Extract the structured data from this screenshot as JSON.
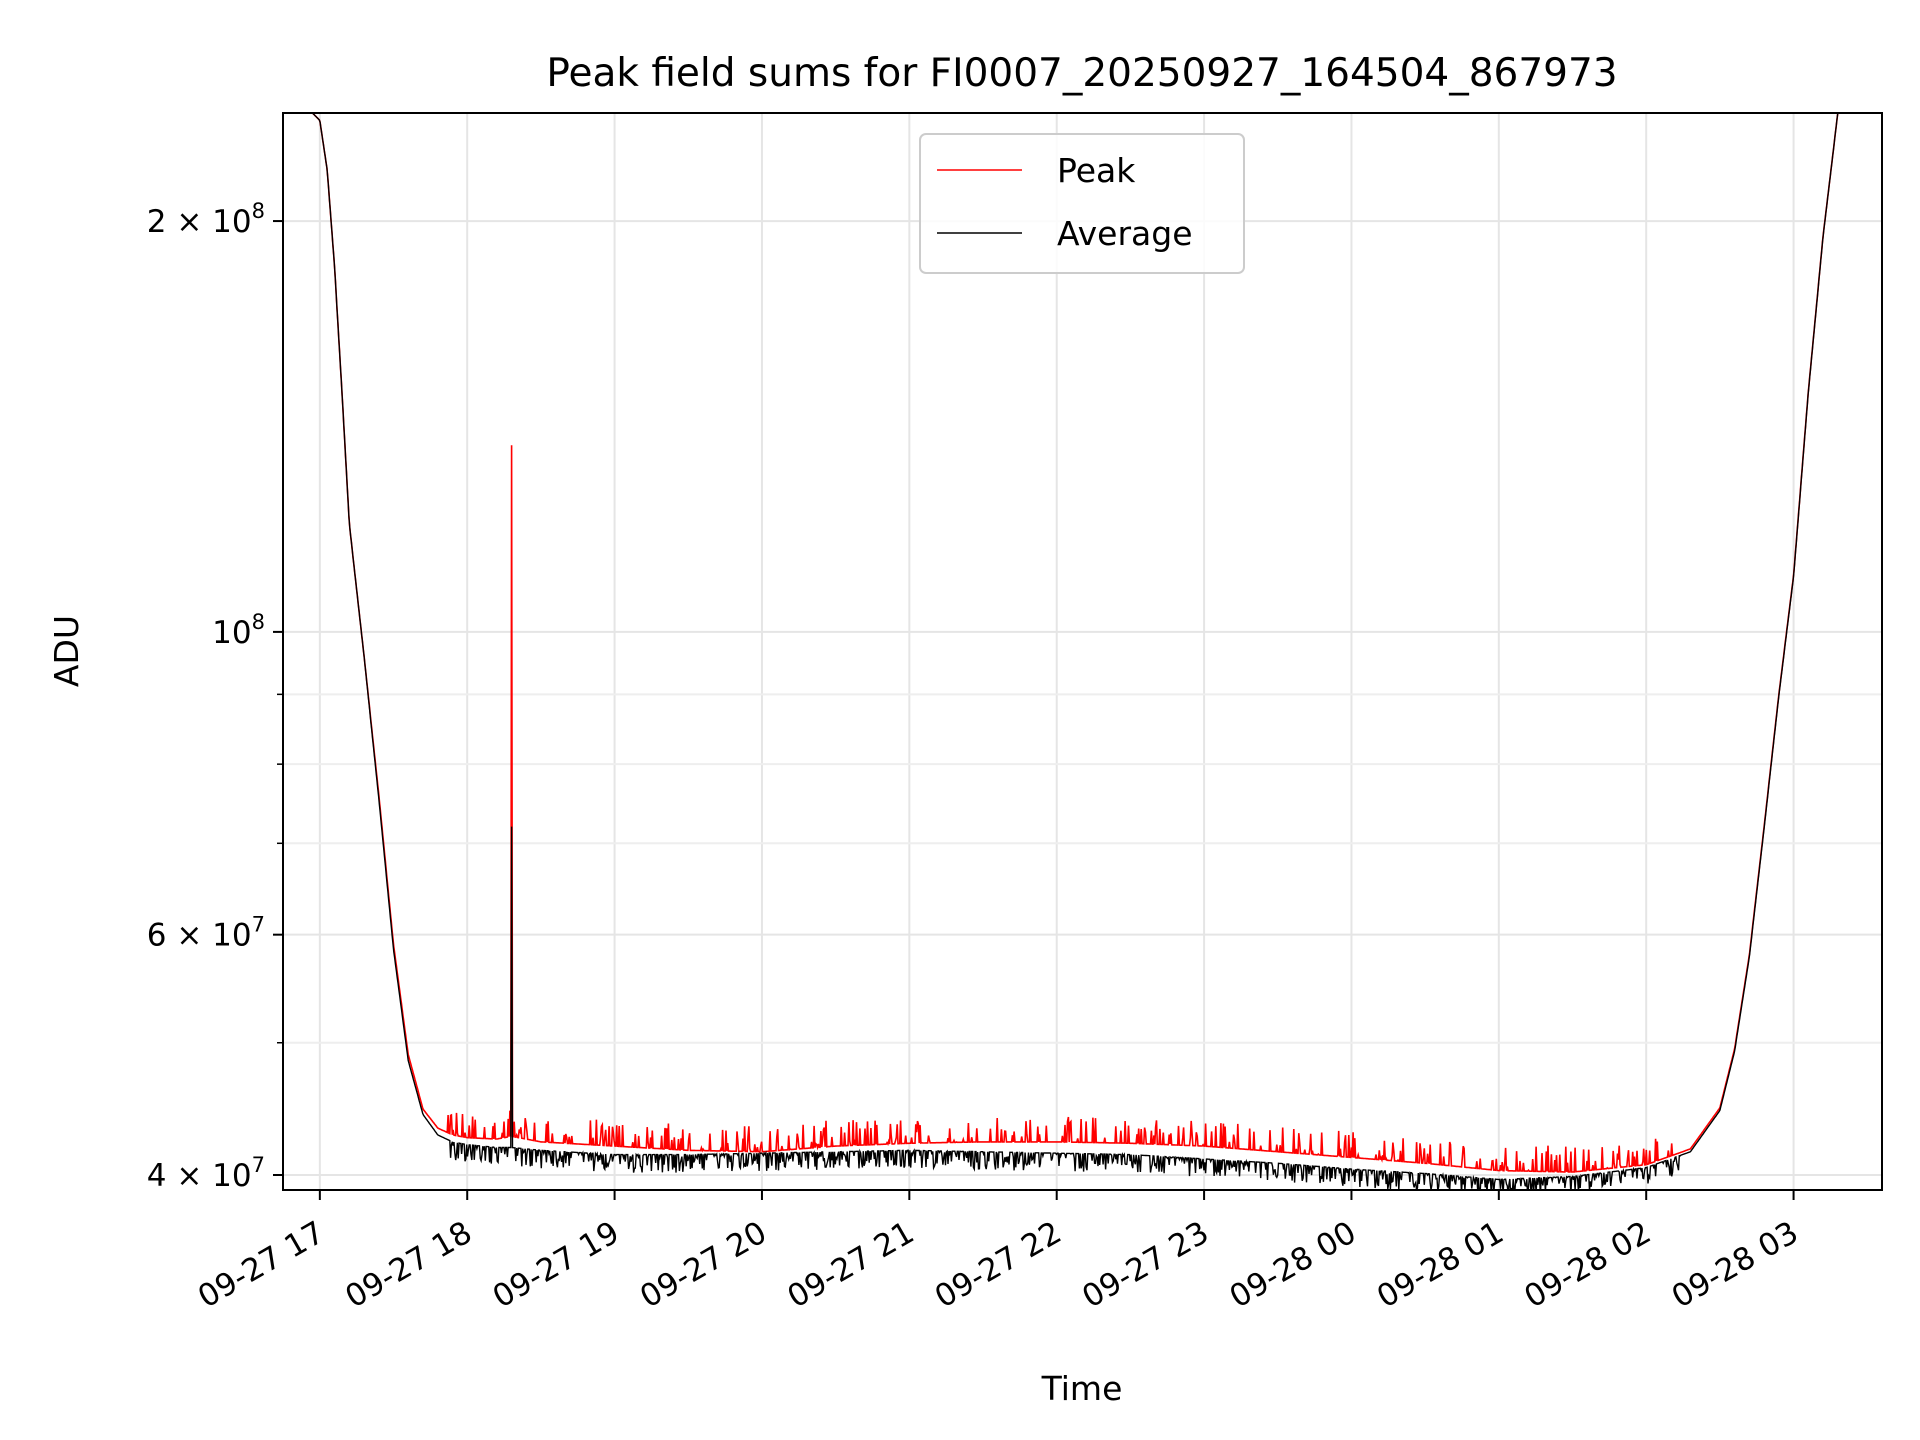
{
  "chart_data": {
    "type": "line",
    "title": "Peak field sums for FI0007_20250927_164504_867973",
    "xlabel": "Time",
    "ylabel": "ADU",
    "yscale": "log",
    "grid": true,
    "legend_position": "top-center",
    "xlim_hours_since_0927_17": [
      -0.25,
      10.6
    ],
    "ylim": [
      39000000,
      240000000
    ],
    "x_ticks": [
      {
        "hour": 0,
        "label": "09-27 17"
      },
      {
        "hour": 1,
        "label": "09-27 18"
      },
      {
        "hour": 2,
        "label": "09-27 19"
      },
      {
        "hour": 3,
        "label": "09-27 20"
      },
      {
        "hour": 4,
        "label": "09-27 21"
      },
      {
        "hour": 5,
        "label": "09-27 22"
      },
      {
        "hour": 6,
        "label": "09-27 23"
      },
      {
        "hour": 7,
        "label": "09-28 00"
      },
      {
        "hour": 8,
        "label": "09-28 01"
      },
      {
        "hour": 9,
        "label": "09-28 02"
      },
      {
        "hour": 10,
        "label": "09-28 03"
      }
    ],
    "y_major_ticks": [
      {
        "value": 40000000,
        "mantissa": "4",
        "exponent": "7"
      },
      {
        "value": 60000000,
        "mantissa": "6",
        "exponent": "7"
      },
      {
        "value": 100000000,
        "mantissa": "",
        "exponent": "8"
      },
      {
        "value": 200000000,
        "mantissa": "2",
        "exponent": "8"
      }
    ],
    "y_minor_ticks": [
      50000000,
      70000000,
      80000000,
      90000000
    ],
    "series": [
      {
        "name": "Peak",
        "color": "#ff0000",
        "hours": [
          -0.05,
          0.0,
          0.05,
          0.1,
          0.15,
          0.2,
          0.3,
          0.4,
          0.5,
          0.6,
          0.7,
          0.8,
          0.9,
          1.0,
          1.2,
          1.3,
          1.5,
          2.0,
          2.5,
          3.0,
          3.5,
          4.0,
          4.5,
          5.0,
          5.5,
          6.0,
          6.5,
          7.0,
          7.5,
          8.0,
          8.5,
          9.0,
          9.3,
          9.5,
          9.6,
          9.7,
          9.8,
          9.9,
          10.0,
          10.1,
          10.2,
          10.3
        ],
        "values": [
          240000000,
          237000000,
          218000000,
          185000000,
          150000000,
          120000000,
          96000000,
          76000000,
          59000000,
          49000000,
          44700000,
          43300000,
          42800000,
          42600000,
          42500000,
          42700000,
          42300000,
          42000000,
          41700000,
          41600000,
          42000000,
          42200000,
          42300000,
          42300000,
          42200000,
          42000000,
          41600000,
          41200000,
          40800000,
          40300000,
          40200000,
          40700000,
          41800000,
          44800000,
          49500000,
          58000000,
          72000000,
          90000000,
          110000000,
          150000000,
          195000000,
          240000000
        ],
        "spike": {
          "hour": 1.3,
          "value": 137000000
        }
      },
      {
        "name": "Average",
        "color": "#000000",
        "hours": [
          -0.05,
          0.0,
          0.05,
          0.1,
          0.15,
          0.2,
          0.3,
          0.4,
          0.5,
          0.6,
          0.7,
          0.8,
          0.9,
          1.0,
          1.2,
          1.3,
          1.5,
          2.0,
          2.5,
          3.0,
          3.5,
          4.0,
          4.5,
          5.0,
          5.5,
          6.0,
          6.5,
          7.0,
          7.5,
          8.0,
          8.5,
          9.0,
          9.3,
          9.5,
          9.6,
          9.7,
          9.8,
          9.9,
          10.0,
          10.1,
          10.2,
          10.3
        ],
        "values": [
          240000000,
          237000000,
          218000000,
          185000000,
          150000000,
          120000000,
          96000000,
          75500000,
          58500000,
          48500000,
          44300000,
          42800000,
          42300000,
          42100000,
          41900000,
          41900000,
          41700000,
          41400000,
          41400000,
          41500000,
          41600000,
          41700000,
          41600000,
          41500000,
          41400000,
          41100000,
          40800000,
          40400000,
          40100000,
          39700000,
          39900000,
          40500000,
          41600000,
          44600000,
          49300000,
          57800000,
          71800000,
          89800000,
          109800000,
          149800000,
          194800000,
          240000000
        ],
        "spike": {
          "hour": 1.3,
          "value": 72000000
        }
      }
    ]
  }
}
